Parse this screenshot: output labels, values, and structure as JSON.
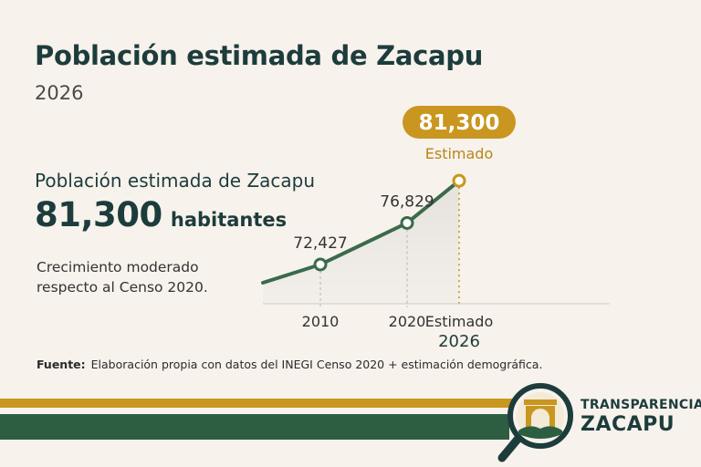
{
  "header": {
    "title": "Población estimada de Zacapu",
    "subtitle": "2026"
  },
  "summary": {
    "heading": "Población estimada de Zacapu",
    "value": "81,300",
    "unit": "habitantes",
    "note": "Crecimiento moderado respecto al Censo 2020."
  },
  "colors": {
    "line": "#3a6b4b",
    "accent_gold": "#c9961f",
    "text_dark": "#1d3c3c",
    "band_green": "#2e5e42"
  },
  "chart_data": {
    "type": "line",
    "title": "",
    "xlabel": "",
    "ylabel": "",
    "grid": false,
    "categories": [
      "2010",
      "2020",
      "Estimado 2026"
    ],
    "x": [
      2010,
      2020,
      2026
    ],
    "series": [
      {
        "values": [
          72427,
          76829,
          81300
        ]
      }
    ],
    "data_labels": [
      "72,427",
      "76,829",
      "81,300"
    ],
    "tick_labels": [
      {
        "main": "2010",
        "sub": ""
      },
      {
        "main": "2020",
        "sub": ""
      },
      {
        "main": "Estimado",
        "sub": "2026"
      }
    ],
    "highlight": {
      "badge": "81,300",
      "caption": "Estimado"
    }
  },
  "footer": {
    "source_label": "Fuente:",
    "source_text": "Elaboración propia con datos del INEGI Censo 2020 + estimación demográfica.",
    "brand_line1": "TRANSPARENCIA",
    "brand_line2": "ZACAPU",
    "logo_icon": "magnifier-arch-icon"
  }
}
